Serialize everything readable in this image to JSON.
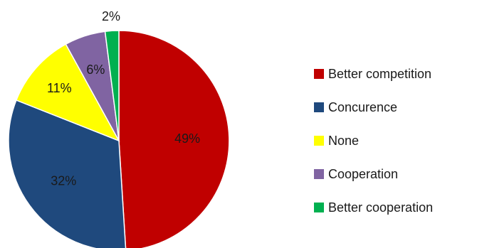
{
  "chart_data": {
    "type": "pie",
    "title": "",
    "start_angle_deg": 0,
    "direction": "clockwise",
    "legend_position": "right",
    "slices": [
      {
        "label": "Better competition",
        "value": 49,
        "display": "49%",
        "color": "#C00000"
      },
      {
        "label": "Concurence",
        "value": 32,
        "display": "32%",
        "color": "#1F497D"
      },
      {
        "label": "None",
        "value": 11,
        "display": "11%",
        "color": "#FFFF00"
      },
      {
        "label": "Cooperation",
        "value": 6,
        "display": "6%",
        "color": "#8064A2"
      },
      {
        "label": "Better cooperation",
        "value": 2,
        "display": "2%",
        "color": "#00B050"
      }
    ]
  }
}
